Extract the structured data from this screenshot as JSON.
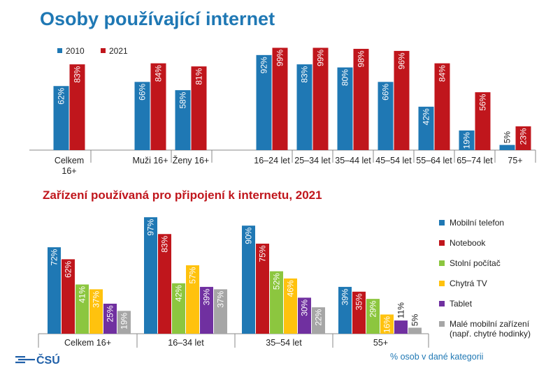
{
  "title": "Osoby používající internet",
  "subtitle": "Zařízení používaná pro připojení k internetu, 2021",
  "note": "% osob v dané kategorii",
  "logo_text": "ČSÚ",
  "chart_data": [
    {
      "type": "bar",
      "title": "Osoby používající internet",
      "categories": [
        "Celkem 16+",
        "Muži 16+",
        "Ženy 16+",
        "16–24 let",
        "25–34 let",
        "35–44 let",
        "45–54 let",
        "55–64 let",
        "65–74 let",
        "75+"
      ],
      "series": [
        {
          "name": "2010",
          "color": "#1f78b4",
          "values": [
            62,
            66,
            58,
            92,
            83,
            80,
            66,
            42,
            19,
            5
          ]
        },
        {
          "name": "2021",
          "color": "#c0161c",
          "values": [
            83,
            84,
            81,
            99,
            99,
            98,
            96,
            84,
            56,
            23
          ]
        }
      ],
      "ylim": [
        0,
        100
      ],
      "legend_position": "top-left",
      "value_labels": "percent, rotated",
      "grid": false
    },
    {
      "type": "bar",
      "title": "Zařízení používaná pro připojení k internetu, 2021",
      "categories": [
        "Celkem 16+",
        "16–34 let",
        "35–54 let",
        "55+"
      ],
      "series": [
        {
          "name": "Mobilní telefon",
          "color": "#1f78b4",
          "values": [
            72,
            97,
            90,
            39
          ]
        },
        {
          "name": "Notebook",
          "color": "#c0161c",
          "values": [
            62,
            83,
            75,
            35
          ]
        },
        {
          "name": "Stolní počítač",
          "color": "#8cc63f",
          "values": [
            41,
            42,
            52,
            29
          ]
        },
        {
          "name": "Chytrá TV",
          "color": "#ffc20e",
          "values": [
            37,
            57,
            46,
            16
          ]
        },
        {
          "name": "Tablet",
          "color": "#7030a0",
          "values": [
            25,
            39,
            30,
            11
          ]
        },
        {
          "name": "Malé mobilní zařízení (např. chytré hodinky)",
          "color": "#a6a6a6",
          "values": [
            19,
            37,
            22,
            5
          ]
        }
      ],
      "ylim": [
        0,
        100
      ],
      "legend_position": "right",
      "value_labels": "percent, rotated",
      "grid": false
    }
  ]
}
